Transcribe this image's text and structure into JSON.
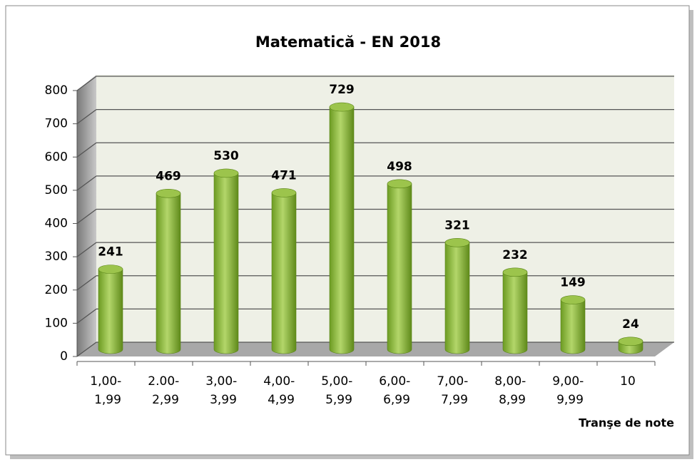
{
  "chart_data": {
    "type": "bar3d",
    "title": "Matematică - EN 2018",
    "x_label": "Tranşe de note",
    "categories": [
      "1,00- 1,99",
      "2.00- 2,99",
      "3,00- 3,99",
      "4,00- 4,99",
      "5,00- 5,99",
      "6,00- 6,99",
      "7,00- 7,99",
      "8,00- 8,99",
      "9,00- 9,99",
      "10"
    ],
    "values": [
      241,
      469,
      530,
      471,
      729,
      498,
      321,
      232,
      149,
      24
    ],
    "color": "#8cb83a",
    "ylim": [
      0,
      800
    ],
    "yticks": [
      0,
      100,
      200,
      300,
      400,
      500,
      600,
      700,
      800
    ],
    "grid": true
  }
}
